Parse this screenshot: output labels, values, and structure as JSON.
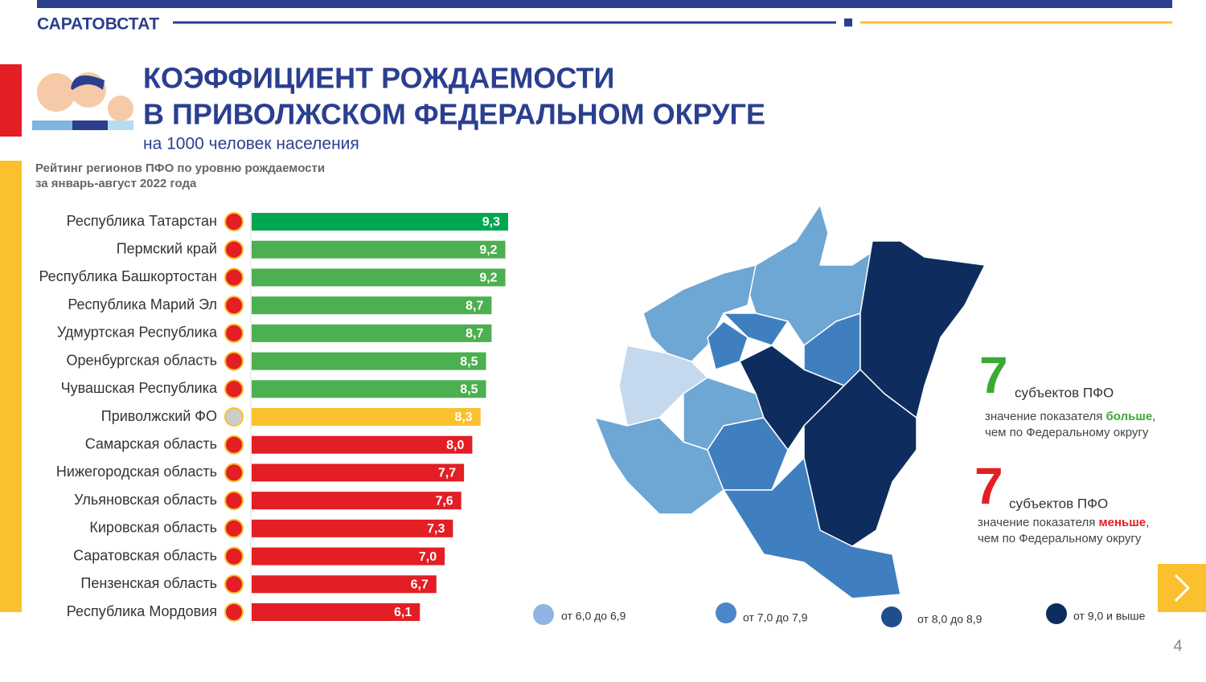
{
  "header": {
    "brand": "САРАТОВСТАТ",
    "title_line1": "КОЭФФИЦИЕНТ РОЖДАЕМОСТИ",
    "title_line2": "В ПРИВОЛЖСКОМ ФЕДЕРАЛЬНОМ ОКРУГЕ",
    "subtitle": "на 1000 человек населения"
  },
  "chart_data": {
    "type": "bar",
    "orientation": "horizontal",
    "title_line1": "Рейтинг регионов ПФО по уровню рождаемости",
    "title_line2": "за январь-август 2022 года",
    "categories": [
      "Республика Татарстан",
      "Пермский край",
      "Республика Башкортостан",
      "Республика Марий Эл",
      "Удмуртская Республика",
      "Оренбургская область",
      "Чувашская Республика",
      "Приволжский ФО",
      "Самарская область",
      "Нижегородская область",
      "Ульяновская область",
      "Кировская область",
      "Саратовская область",
      "Пензенская область",
      "Республика Мордовия"
    ],
    "values": [
      9.3,
      9.2,
      9.2,
      8.7,
      8.7,
      8.5,
      8.5,
      8.3,
      8.0,
      7.7,
      7.6,
      7.3,
      7.0,
      6.7,
      6.1
    ],
    "value_labels": [
      "9,3",
      "9,2",
      "9,2",
      "8,7",
      "8,7",
      "8,5",
      "8,5",
      "8,3",
      "8,0",
      "7,7",
      "7,6",
      "7,3",
      "7,0",
      "6,7",
      "6,1"
    ],
    "colors": [
      "#00a651",
      "#4caf50",
      "#4caf50",
      "#4caf50",
      "#4caf50",
      "#4caf50",
      "#4caf50",
      "#fbc02d",
      "#e31e24",
      "#e31e24",
      "#e31e24",
      "#e31e24",
      "#e31e24",
      "#e31e24",
      "#e31e24"
    ],
    "xlim": [
      0,
      9.3
    ]
  },
  "map_legend": [
    "от 6,0  до  6,9",
    "от  7,0  до 7,9",
    "от 8,0  до  8,9",
    "от 9,0 и выше"
  ],
  "summary": [
    {
      "count": "7",
      "unit": "субъектов ПФО",
      "line1": "значение показателя ",
      "emphasis": "больше",
      "line1_end": ",",
      "line2": "чем по Федеральному округу"
    },
    {
      "count": "7",
      "unit": "субъектов ПФО",
      "line1": "значение показателя ",
      "emphasis": "меньше",
      "line1_end": ",",
      "line2": "чем по Федеральному округу"
    }
  ],
  "page_number": "4"
}
